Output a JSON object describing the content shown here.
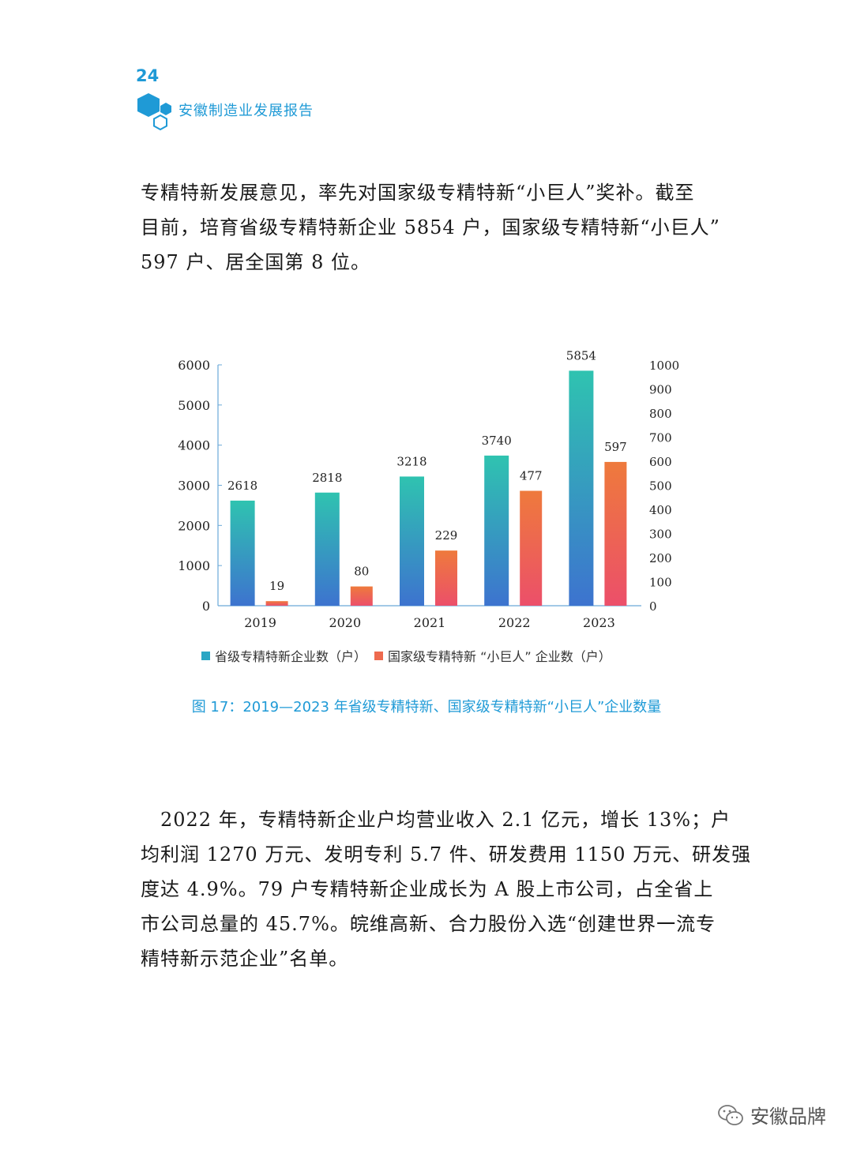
{
  "header": {
    "page_number": "24",
    "book_title": "安徽制造业发展报告"
  },
  "paragraph_1": [
    "专精特新发展意见，率先对国家级专精特新“小巨人”奖补。截至",
    "目前，培育省级专精特新企业 5854 户，国家级专精特新“小巨人”",
    "597 户、居全国第 8 位。"
  ],
  "chart_data": {
    "type": "bar",
    "categories": [
      "2019",
      "2020",
      "2021",
      "2022",
      "2023"
    ],
    "series": [
      {
        "name": "省级专精特新企业数（户）",
        "axis": "left",
        "values": [
          2618,
          2818,
          3218,
          3740,
          5854
        ],
        "color": "#2db9b6"
      },
      {
        "name": "国家级专精特新 “小巨人” 企业数（户）",
        "axis": "right",
        "values": [
          19,
          80,
          229,
          477,
          597
        ],
        "color": "#ef6a4e"
      }
    ],
    "y_left": {
      "range": [
        0,
        6000
      ],
      "ticks": [
        "0",
        "1000",
        "2000",
        "3000",
        "4000",
        "5000",
        "6000"
      ]
    },
    "y_right": {
      "range": [
        0,
        1000
      ],
      "ticks": [
        "0",
        "100",
        "200",
        "300",
        "400",
        "500",
        "600",
        "700",
        "800",
        "900",
        "1000"
      ]
    },
    "legend_position": "bottom",
    "grid": false
  },
  "caption": "图 17：2019—2023 年省级专精特新、国家级专精特新“小巨人”企业数量",
  "paragraph_2": [
    "　2022 年，专精特新企业户均营业收入 2.1 亿元，增长 13%；户",
    "均利润 1270 万元、发明专利 5.7 件、研发费用 1150 万元、研发强",
    "度达 4.9%。79 户专精特新企业成长为 A 股上市公司，占全省上",
    "市公司总量的 45.7%。皖维高新、合力股份入选“创建世界一流专",
    "精特新示范企业”名单。"
  ],
  "watermark": {
    "text": "安徽品牌",
    "icon": "wechat-icon"
  }
}
